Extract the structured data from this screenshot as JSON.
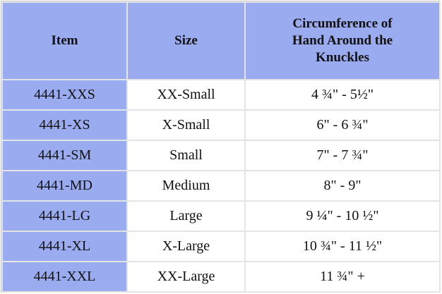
{
  "table": {
    "header": [
      "Item",
      "Size",
      "Circumference of Hand Around the Knuckles"
    ],
    "rows": [
      [
        "4441-XXS",
        "XX-Small",
        "4 ¾\" - 5½\""
      ],
      [
        "4441-XS",
        "X-Small",
        "6\" - 6 ¾\""
      ],
      [
        "4441-SM",
        "Small",
        "7\" - 7 ¾\""
      ],
      [
        "4441-MD",
        "Medium",
        "8\" - 9\""
      ],
      [
        "4441-LG",
        "Large",
        "9 ¼\" - 10 ½\""
      ],
      [
        "4441-XL",
        "X-Large",
        "10 ¾\" - 11 ½\""
      ],
      [
        "4441-XXL",
        "XX-Large",
        "11 ¾\" +"
      ]
    ]
  }
}
